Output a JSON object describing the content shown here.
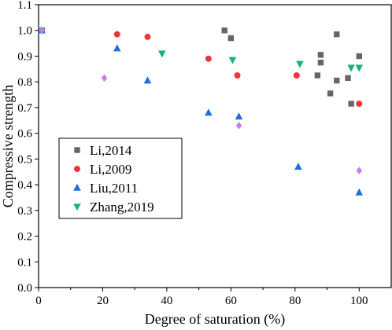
{
  "chart_data": {
    "type": "scatter",
    "xlabel": "Degree of saturation (%)",
    "ylabel": "Compressive strength",
    "xlim": [
      0,
      110
    ],
    "ylim": [
      0.0,
      1.1
    ],
    "x_ticks": [
      0,
      20,
      40,
      60,
      80,
      100
    ],
    "x_tick_labels": [
      "0",
      "20",
      "40",
      "60",
      "80",
      "100"
    ],
    "y_ticks": [
      0.0,
      0.1,
      0.2,
      0.3,
      0.4,
      0.5,
      0.6,
      0.7,
      0.8,
      0.9,
      1.0,
      1.1
    ],
    "y_tick_labels": [
      "0.0",
      "0.1",
      "0.2",
      "0.3",
      "0.4",
      "0.5",
      "0.6",
      "0.7",
      "0.8",
      "0.9",
      "1.0",
      "1.1"
    ],
    "grid": false,
    "legend_position": "lower-left",
    "series": [
      {
        "name": "Li,2014",
        "marker": "square",
        "color": "#666666",
        "points": [
          {
            "x": 1,
            "y": 1.0
          },
          {
            "x": 58,
            "y": 1.0
          },
          {
            "x": 60,
            "y": 0.97
          },
          {
            "x": 87,
            "y": 0.825
          },
          {
            "x": 88,
            "y": 0.905
          },
          {
            "x": 88,
            "y": 0.875
          },
          {
            "x": 91,
            "y": 0.755
          },
          {
            "x": 93,
            "y": 0.985
          },
          {
            "x": 93,
            "y": 0.805
          },
          {
            "x": 96.5,
            "y": 0.815
          },
          {
            "x": 97.5,
            "y": 0.715
          },
          {
            "x": 100,
            "y": 0.9
          }
        ]
      },
      {
        "name": "Li,2009",
        "marker": "circle",
        "color": "#f0353a",
        "points": [
          {
            "x": 1,
            "y": 1.0
          },
          {
            "x": 24.5,
            "y": 0.985
          },
          {
            "x": 34,
            "y": 0.975
          },
          {
            "x": 53,
            "y": 0.89
          },
          {
            "x": 62,
            "y": 0.825
          },
          {
            "x": 80.5,
            "y": 0.825
          },
          {
            "x": 100,
            "y": 0.715
          }
        ]
      },
      {
        "name": "Liu,2011",
        "marker": "triangle-up",
        "color": "#1f6fe0",
        "points": [
          {
            "x": 1,
            "y": 1.0
          },
          {
            "x": 24.5,
            "y": 0.93
          },
          {
            "x": 34,
            "y": 0.805
          },
          {
            "x": 53,
            "y": 0.68
          },
          {
            "x": 62.5,
            "y": 0.665
          },
          {
            "x": 81,
            "y": 0.47
          },
          {
            "x": 100,
            "y": 0.37
          }
        ]
      },
      {
        "name": "Zhang,2019",
        "marker": "triangle-down",
        "color": "#16b27b",
        "points": [
          {
            "x": 1,
            "y": 1.0
          },
          {
            "x": 38.5,
            "y": 0.91
          },
          {
            "x": 60.5,
            "y": 0.885
          },
          {
            "x": 81.5,
            "y": 0.87
          },
          {
            "x": 97.5,
            "y": 0.855
          },
          {
            "x": 100,
            "y": 0.855
          }
        ]
      },
      {
        "name": "",
        "marker": "diamond",
        "color": "#c77dea",
        "points": [
          {
            "x": 1,
            "y": 1.0
          },
          {
            "x": 20.5,
            "y": 0.815
          },
          {
            "x": 62.5,
            "y": 0.63
          },
          {
            "x": 100,
            "y": 0.455
          }
        ]
      }
    ]
  }
}
